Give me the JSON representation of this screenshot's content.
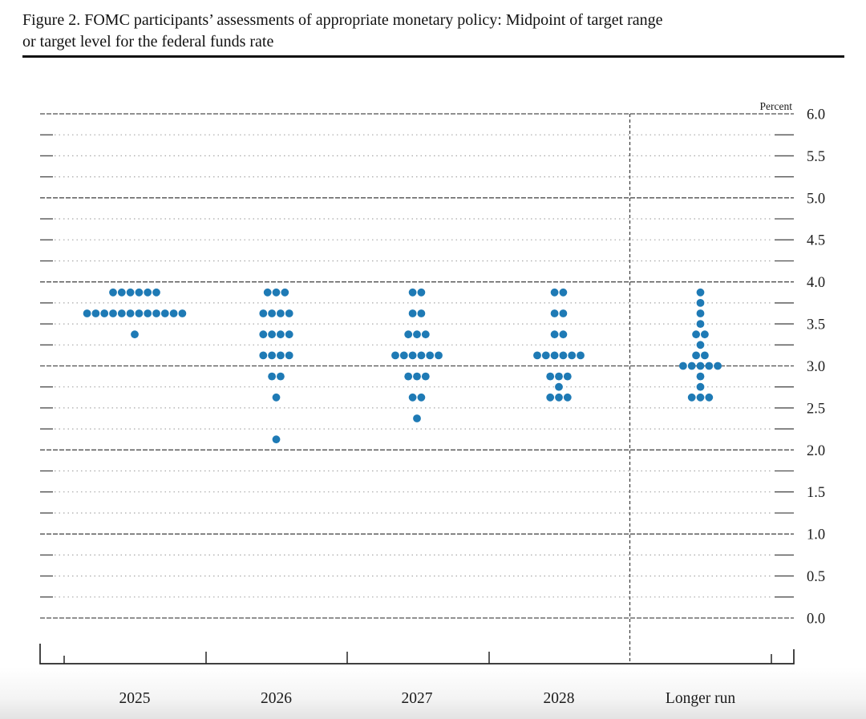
{
  "page": {
    "title_line1": "Figure 2. FOMC participants’ assessments of appropriate monetary policy: Midpoint of target range",
    "title_line2": "or target level for the federal funds rate"
  },
  "chart_data": {
    "type": "scatter",
    "subtype": "fomc-dot-plot",
    "title": "Figure 2. FOMC participants’ assessments of appropriate monetary policy: Midpoint of target range or target level for the federal funds rate",
    "unit_label": "Percent",
    "ylabel": "Percent",
    "ylim": [
      0.0,
      6.0
    ],
    "grid_step": 0.25,
    "gridlines": "solid dark lines at integers, light dotted lines at quarter points, short solid ticks at both plot edges",
    "legend_position": "none",
    "y_tick_labels": [
      "6.0",
      "5.5",
      "5.0",
      "4.5",
      "4.0",
      "3.5",
      "3.0",
      "2.5",
      "2.0",
      "1.5",
      "1.0",
      "0.5",
      "0.0"
    ],
    "x_categories": [
      "2025",
      "2026",
      "2027",
      "2028",
      "Longer run"
    ],
    "separator": "vertical dashed line between 2028 and Longer run",
    "dot_color": "#1e7ab5",
    "participants_per_column": 19,
    "columns": [
      {
        "label": "2025",
        "dots": [
          {
            "rate": 3.875,
            "count": 6
          },
          {
            "rate": 3.625,
            "count": 12
          },
          {
            "rate": 3.375,
            "count": 1
          }
        ]
      },
      {
        "label": "2026",
        "dots": [
          {
            "rate": 3.875,
            "count": 3
          },
          {
            "rate": 3.625,
            "count": 4
          },
          {
            "rate": 3.375,
            "count": 4
          },
          {
            "rate": 3.125,
            "count": 4
          },
          {
            "rate": 2.875,
            "count": 2
          },
          {
            "rate": 2.625,
            "count": 1
          },
          {
            "rate": 2.125,
            "count": 1
          }
        ]
      },
      {
        "label": "2027",
        "dots": [
          {
            "rate": 3.875,
            "count": 2
          },
          {
            "rate": 3.625,
            "count": 2
          },
          {
            "rate": 3.375,
            "count": 3
          },
          {
            "rate": 3.125,
            "count": 6
          },
          {
            "rate": 2.875,
            "count": 3
          },
          {
            "rate": 2.625,
            "count": 2
          },
          {
            "rate": 2.375,
            "count": 1
          }
        ]
      },
      {
        "label": "2028",
        "dots": [
          {
            "rate": 3.875,
            "count": 2
          },
          {
            "rate": 3.625,
            "count": 2
          },
          {
            "rate": 3.375,
            "count": 2
          },
          {
            "rate": 3.125,
            "count": 6
          },
          {
            "rate": 2.875,
            "count": 3
          },
          {
            "rate": 2.75,
            "count": 1
          },
          {
            "rate": 2.625,
            "count": 3
          }
        ]
      },
      {
        "label": "Longer run",
        "dots": [
          {
            "rate": 3.875,
            "count": 1
          },
          {
            "rate": 3.75,
            "count": 1
          },
          {
            "rate": 3.625,
            "count": 1
          },
          {
            "rate": 3.5,
            "count": 1
          },
          {
            "rate": 3.375,
            "count": 2
          },
          {
            "rate": 3.25,
            "count": 1
          },
          {
            "rate": 3.125,
            "count": 2
          },
          {
            "rate": 3.0,
            "count": 5
          },
          {
            "rate": 2.875,
            "count": 1
          },
          {
            "rate": 2.75,
            "count": 1
          },
          {
            "rate": 2.625,
            "count": 3
          }
        ]
      }
    ]
  }
}
